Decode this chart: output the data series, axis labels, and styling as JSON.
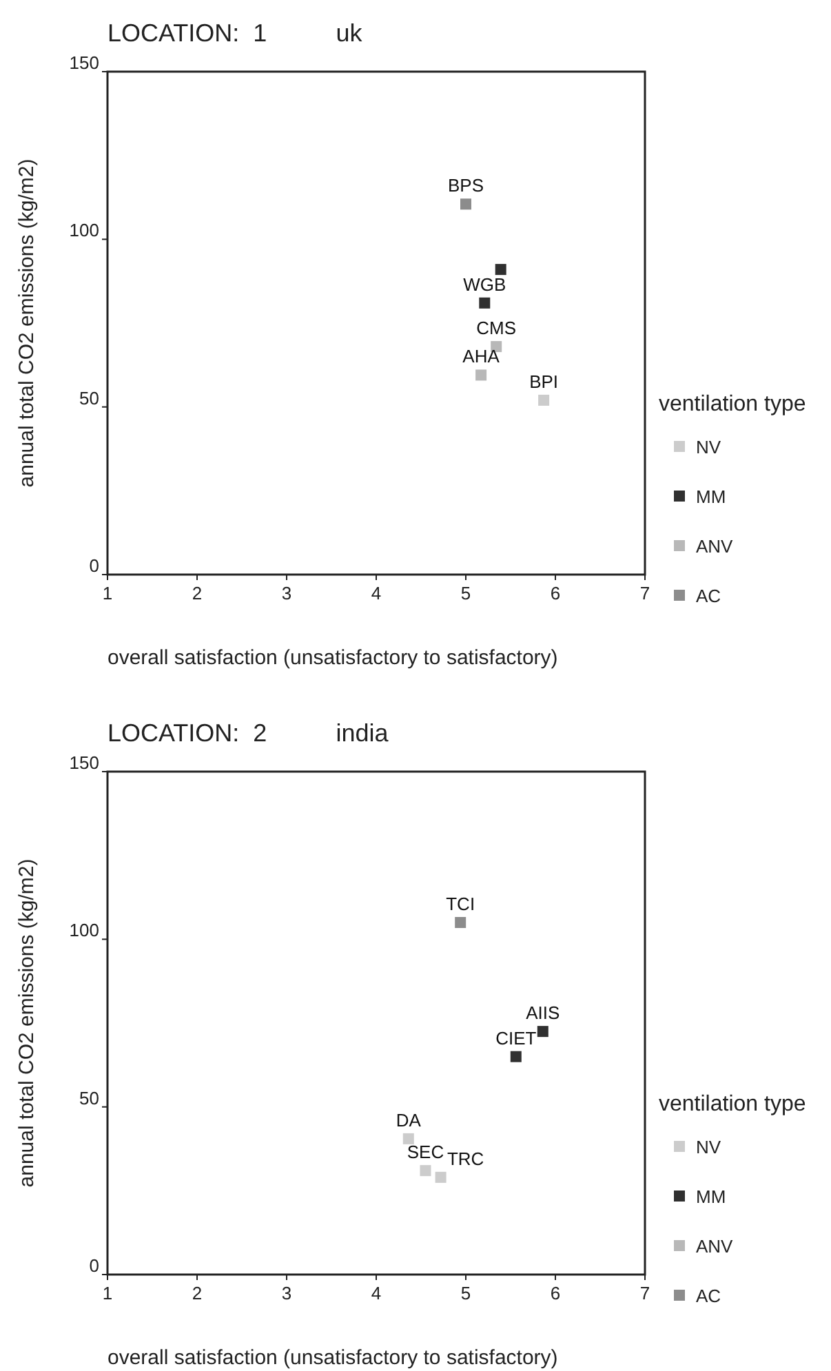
{
  "chart_data": [
    {
      "type": "scatter",
      "title": "LOCATION:  1          uk",
      "xlabel": "overall satisfaction (unsatisfactory to satisfactory)",
      "ylabel": "annual total CO2 emissions (kg/m2)",
      "legend_title": "ventilation type",
      "legend": "right",
      "marker": "square",
      "xlim": [
        1,
        7
      ],
      "xticks": [
        1,
        2,
        3,
        4,
        5,
        6,
        7
      ],
      "ylim": [
        0,
        150
      ],
      "yticks": [
        0,
        50,
        100,
        150
      ],
      "series": [
        {
          "name": "NV",
          "color": "#cccccc",
          "x": [
            5.87
          ],
          "values": [
            52
          ]
        },
        {
          "name": "MM",
          "color": "#303030",
          "x": [
            5.39,
            5.21
          ],
          "values": [
            91,
            81
          ]
        },
        {
          "name": "ANV",
          "color": "#b8b8b8",
          "x": [
            5.34,
            5.17
          ],
          "values": [
            68,
            59.5
          ]
        },
        {
          "name": "AC",
          "color": "#8c8c8c",
          "x": [
            5.0
          ],
          "values": [
            110.5
          ]
        }
      ],
      "annotations": [
        {
          "text": "BPS",
          "x": 5.0,
          "y": 110.5
        },
        {
          "text": "WGB",
          "x": 5.21,
          "y": 81
        },
        {
          "text": "CMS",
          "x": 5.34,
          "y": 68
        },
        {
          "text": "AHA",
          "x": 5.17,
          "y": 59.5
        },
        {
          "text": "BPI",
          "x": 5.87,
          "y": 52
        }
      ]
    },
    {
      "type": "scatter",
      "title": "LOCATION:  2          india",
      "xlabel": "overall satisfaction (unsatisfactory to satisfactory)",
      "ylabel": "annual total CO2 emissions (kg/m2)",
      "legend_title": "ventilation type",
      "legend": "right",
      "marker": "square",
      "xlim": [
        1,
        7
      ],
      "xticks": [
        1,
        2,
        3,
        4,
        5,
        6,
        7
      ],
      "ylim": [
        0,
        150
      ],
      "yticks": [
        0,
        50,
        100,
        150
      ],
      "series": [
        {
          "name": "NV",
          "color": "#cccccc",
          "x": [
            4.36,
            4.55,
            4.72
          ],
          "values": [
            40.5,
            31,
            29
          ]
        },
        {
          "name": "MM",
          "color": "#303030",
          "x": [
            5.86,
            5.56
          ],
          "values": [
            72.5,
            65
          ]
        },
        {
          "name": "ANV",
          "color": "#b8b8b8"
        },
        {
          "name": "AC",
          "color": "#8c8c8c",
          "x": [
            4.94
          ],
          "values": [
            105
          ]
        }
      ],
      "annotations": [
        {
          "text": "TCI",
          "x": 4.94,
          "y": 105
        },
        {
          "text": "AIIS",
          "x": 5.86,
          "y": 72.5
        },
        {
          "text": "CIET",
          "x": 5.56,
          "y": 65
        },
        {
          "text": "DA",
          "x": 4.36,
          "y": 40.5
        },
        {
          "text": "SEC",
          "x": 4.55,
          "y": 31
        },
        {
          "text": "TRC",
          "x": 4.72,
          "y": 29
        }
      ]
    }
  ]
}
